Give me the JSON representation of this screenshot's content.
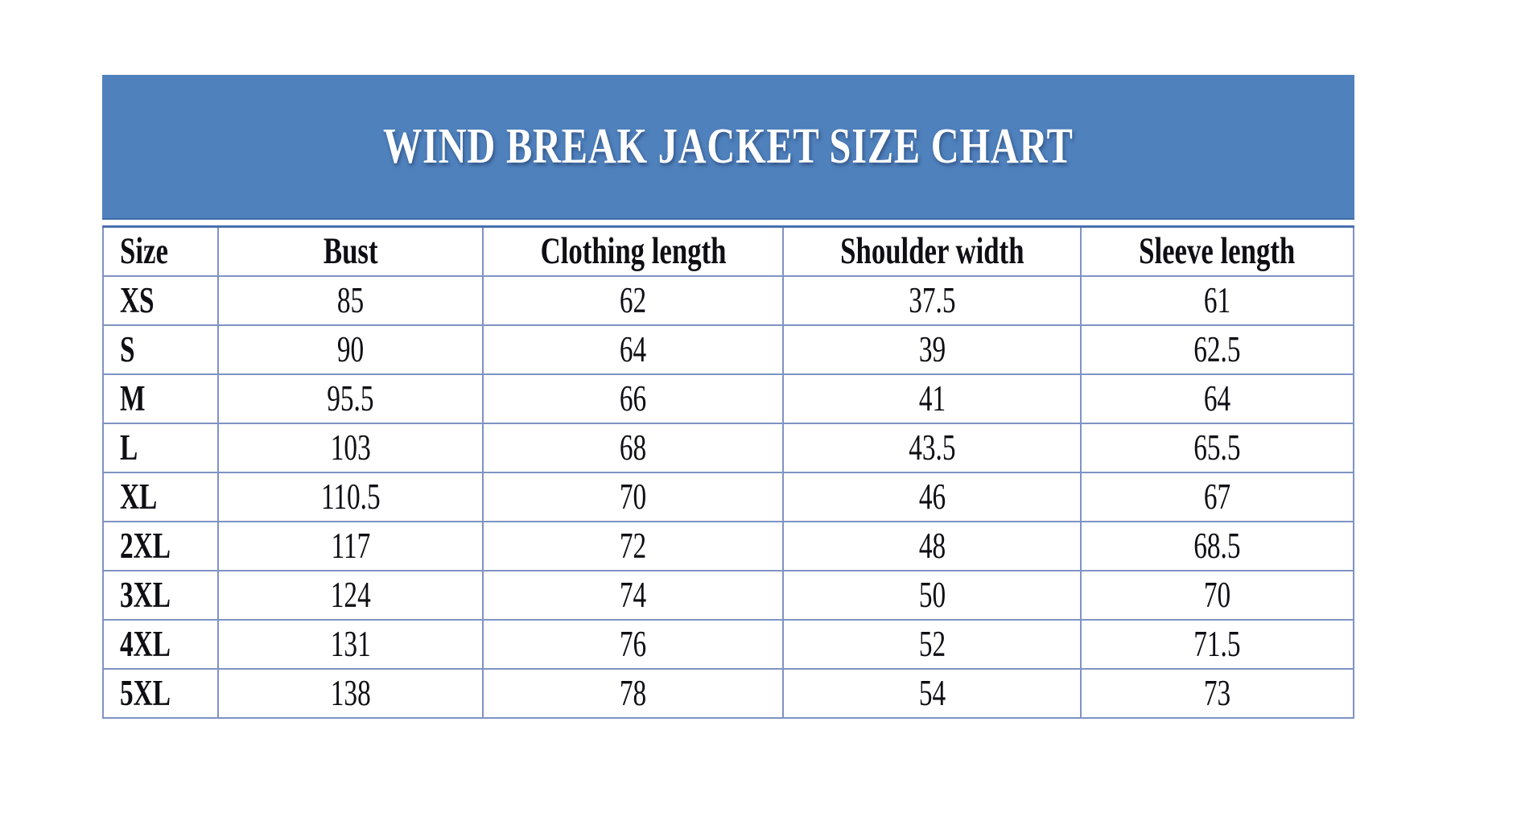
{
  "banner": {
    "title": "WIND BREAK JACKET SIZE CHART"
  },
  "colors": {
    "banner_bg": "#4f81bd",
    "banner_text": "#ffffff",
    "table_border": "#7f93c3",
    "top_rule": "#4a70ae",
    "text": "#0e0e14",
    "page_bg": "#ffffff"
  },
  "chart_data": {
    "type": "table",
    "title": "WIND BREAK JACKET SIZE CHART",
    "columns": [
      "Size",
      "Bust",
      "Clothing length",
      "Shoulder width",
      "Sleeve length"
    ],
    "rows": [
      [
        "XS",
        85,
        62,
        37.5,
        61
      ],
      [
        "S",
        90,
        64,
        39,
        62.5
      ],
      [
        "M",
        95.5,
        66,
        41,
        64
      ],
      [
        "L",
        103,
        68,
        43.5,
        65.5
      ],
      [
        "XL",
        110.5,
        70,
        46,
        67
      ],
      [
        "2XL",
        117,
        72,
        48,
        68.5
      ],
      [
        "3XL",
        124,
        74,
        50,
        70
      ],
      [
        "4XL",
        131,
        76,
        52,
        71.5
      ],
      [
        "5XL",
        138,
        78,
        54,
        73
      ]
    ],
    "layout": {
      "title_position": "banner-top",
      "first_column_align": "left",
      "data_columns_align": "center",
      "grid": "on"
    }
  }
}
